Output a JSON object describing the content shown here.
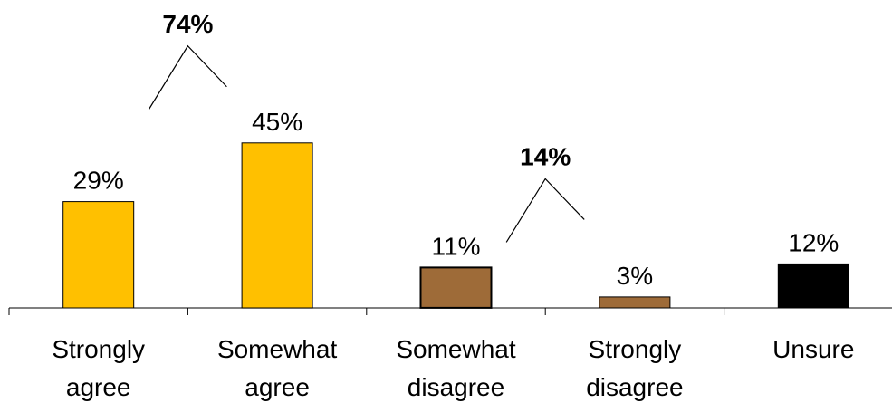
{
  "chart_data": {
    "type": "bar",
    "categories": [
      [
        "Strongly",
        "agree"
      ],
      [
        "Somewhat",
        "agree"
      ],
      [
        "Somewhat",
        "disagree"
      ],
      [
        "Strongly",
        "disagree"
      ],
      [
        "Unsure"
      ]
    ],
    "values": [
      29,
      45,
      11,
      3,
      12
    ],
    "value_labels": [
      "29%",
      "45%",
      "11%",
      "3%",
      "12%"
    ],
    "bar_colors": [
      "#FFC000",
      "#FFC000",
      "#9E6B38",
      "#9E6B38",
      "#000000"
    ],
    "ylim": [
      0,
      50
    ],
    "grid": false,
    "legend": "none",
    "group_annotations": [
      {
        "label": "74%",
        "spans": [
          0,
          1
        ]
      },
      {
        "label": "14%",
        "spans": [
          2,
          3
        ]
      }
    ]
  }
}
